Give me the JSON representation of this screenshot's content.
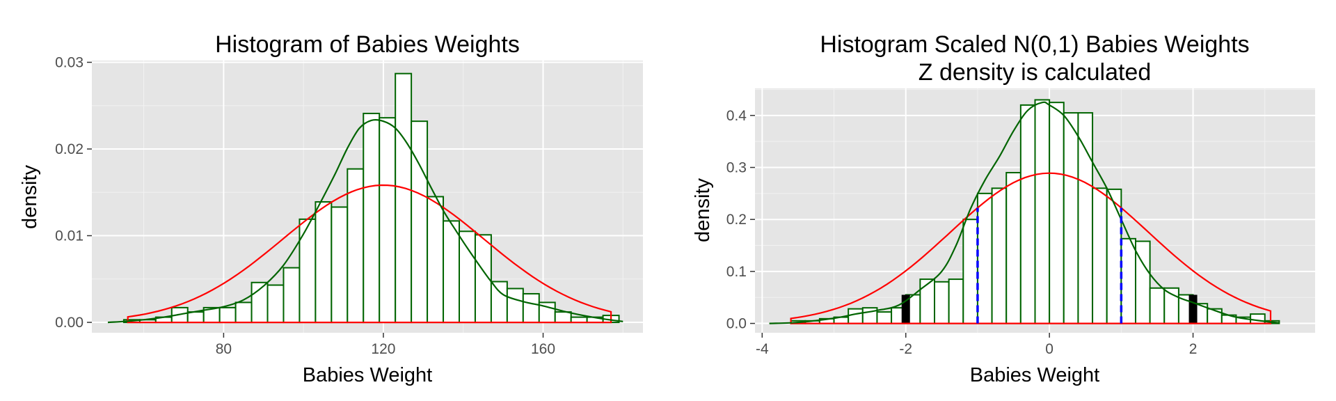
{
  "colors": {
    "panel_bg": "#e5e5e5",
    "grid_major": "#ffffff",
    "grid_minor": "#f2f2f2",
    "bar_fill": "#ffffff",
    "bar_outline": "#006400",
    "density_curve": "#006400",
    "normal_curve": "#ff0000",
    "dashed_lines": "#0000ff",
    "tail_bars": "#000000"
  },
  "chart_data": [
    {
      "type": "bar",
      "title": "Histogram of Babies Weights",
      "subtitle": "",
      "xlabel": "Babies Weight",
      "ylabel": "density",
      "xlim": [
        47,
        185
      ],
      "ylim": [
        -0.0012,
        0.0302
      ],
      "x_ticks": [
        80,
        120,
        160
      ],
      "x_tick_labels": [
        "80",
        "120",
        "160"
      ],
      "y_ticks": [
        0.0,
        0.01,
        0.02,
        0.03
      ],
      "y_tick_labels": [
        "0.00",
        "0.01",
        "0.02",
        "0.03"
      ],
      "grid": true,
      "histogram": {
        "bin_width": 4,
        "bin_starts": [
          55,
          59,
          63,
          67,
          71,
          75,
          79,
          83,
          87,
          91,
          95,
          99,
          103,
          107,
          111,
          115,
          119,
          123,
          127,
          131,
          135,
          139,
          143,
          147,
          151,
          155,
          159,
          163,
          167,
          171,
          175
        ],
        "values": [
          0.0003,
          0.0003,
          0.0006,
          0.0017,
          0.0012,
          0.0017,
          0.0017,
          0.0023,
          0.0046,
          0.0043,
          0.0063,
          0.0119,
          0.0139,
          0.0133,
          0.0177,
          0.0241,
          0.0236,
          0.0287,
          0.0232,
          0.0145,
          0.0117,
          0.0105,
          0.0101,
          0.0047,
          0.0039,
          0.0033,
          0.0023,
          0.0012,
          0.0006,
          0.0006,
          0.0008
        ]
      },
      "density_curve": {
        "x": [
          51,
          55,
          60,
          65,
          70,
          75,
          80,
          85,
          90,
          95,
          100,
          105,
          108,
          111,
          114,
          117,
          120,
          123,
          126,
          129,
          132,
          135,
          138,
          141,
          144,
          147,
          150,
          155,
          160,
          165,
          170,
          175,
          180
        ],
        "y": [
          0.0,
          0.0001,
          0.0003,
          0.0006,
          0.001,
          0.0014,
          0.0018,
          0.0026,
          0.0042,
          0.0066,
          0.0102,
          0.0145,
          0.0172,
          0.0201,
          0.0224,
          0.0233,
          0.0232,
          0.0224,
          0.0206,
          0.0182,
          0.0155,
          0.0129,
          0.0107,
          0.0086,
          0.0066,
          0.0047,
          0.0032,
          0.0024,
          0.0019,
          0.0013,
          0.0008,
          0.0004,
          0.0001
        ]
      },
      "normal_curve": {
        "mean": 120,
        "sd": 25.2,
        "x_range": [
          56,
          177
        ]
      }
    },
    {
      "type": "bar",
      "title": "Histogram Scaled N(0,1) Babies Weights",
      "subtitle": "Z density is calculated",
      "xlabel": "Babies Weight",
      "ylabel": "density",
      "xlim": [
        -4.1,
        3.7
      ],
      "ylim": [
        -0.018,
        0.452
      ],
      "x_ticks": [
        -4,
        -2,
        0,
        2
      ],
      "x_tick_labels": [
        "-4",
        "-2",
        "0",
        "2"
      ],
      "y_ticks": [
        0.0,
        0.1,
        0.2,
        0.3,
        0.4
      ],
      "y_tick_labels": [
        "0.0",
        "0.1",
        "0.2",
        "0.3",
        "0.4"
      ],
      "grid": true,
      "histogram": {
        "bin_width": 0.2,
        "bin_starts": [
          -3.6,
          -3.4,
          -3.2,
          -3.0,
          -2.8,
          -2.6,
          -2.4,
          -2.2,
          -2.0,
          -1.8,
          -1.6,
          -1.4,
          -1.2,
          -1.0,
          -0.8,
          -0.6,
          -0.4,
          -0.2,
          0.0,
          0.2,
          0.4,
          0.6,
          0.8,
          1.0,
          1.2,
          1.4,
          1.6,
          1.8,
          2.0,
          2.2,
          2.4,
          2.6,
          2.8,
          3.0
        ],
        "values": [
          0.005,
          0.005,
          0.009,
          0.012,
          0.028,
          0.03,
          0.022,
          0.03,
          0.055,
          0.085,
          0.08,
          0.085,
          0.2,
          0.25,
          0.26,
          0.29,
          0.42,
          0.43,
          0.425,
          0.405,
          0.405,
          0.26,
          0.258,
          0.163,
          0.158,
          0.068,
          0.068,
          0.055,
          0.038,
          0.028,
          0.016,
          0.012,
          0.018,
          0.005
        ]
      },
      "density_curve": {
        "x": [
          -3.9,
          -3.5,
          -3.0,
          -2.7,
          -2.4,
          -2.1,
          -1.8,
          -1.5,
          -1.3,
          -1.1,
          -0.9,
          -0.7,
          -0.5,
          -0.3,
          -0.1,
          0.0,
          0.2,
          0.4,
          0.6,
          0.8,
          1.0,
          1.2,
          1.4,
          1.6,
          1.8,
          2.0,
          2.3,
          2.6,
          3.0,
          3.2
        ],
        "y": [
          0.0,
          0.002,
          0.01,
          0.018,
          0.025,
          0.035,
          0.065,
          0.1,
          0.15,
          0.22,
          0.275,
          0.32,
          0.37,
          0.41,
          0.425,
          0.42,
          0.4,
          0.36,
          0.31,
          0.26,
          0.2,
          0.14,
          0.095,
          0.065,
          0.05,
          0.04,
          0.025,
          0.012,
          0.004,
          0.001
        ]
      },
      "normal_curve": {
        "mean": 0,
        "sd": 1.38,
        "x_range": [
          -3.6,
          3.08
        ]
      },
      "dashed_lines": [
        -1,
        1
      ],
      "tail_bars": [
        -2,
        2
      ]
    }
  ]
}
